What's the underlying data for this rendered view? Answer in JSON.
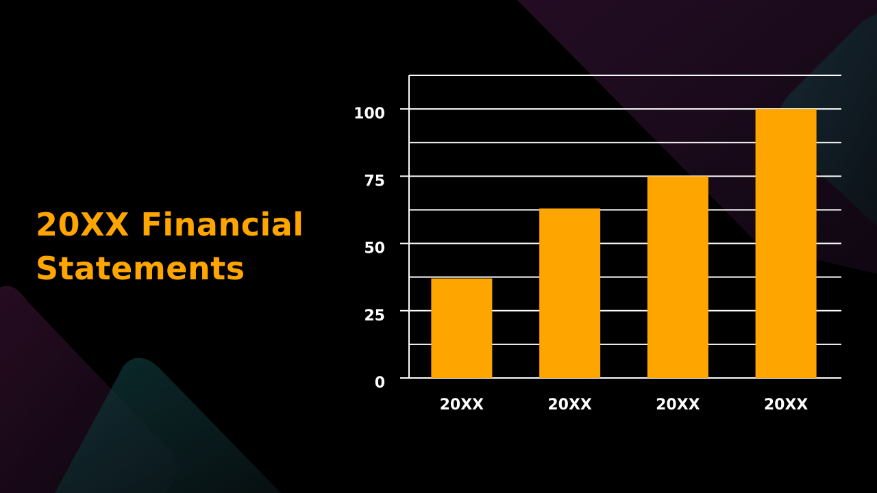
{
  "slide": {
    "title_line1": "20XX Financial",
    "title_line2": "Statements"
  },
  "colors": {
    "background": "#000000",
    "accent": "#FFA500",
    "gridline": "#FFFFFF",
    "text": "#FFFFFF"
  },
  "chart_data": {
    "type": "bar",
    "categories": [
      "20XX",
      "20XX",
      "20XX",
      "20XX"
    ],
    "values": [
      37,
      63,
      75,
      100
    ],
    "title": "",
    "xlabel": "",
    "ylabel": "",
    "ylim": [
      0,
      112.5
    ],
    "yticks": [
      0,
      25,
      50,
      75,
      100
    ],
    "minor_gridlines": true,
    "legend": "none",
    "bar_color": "#FFA500"
  }
}
